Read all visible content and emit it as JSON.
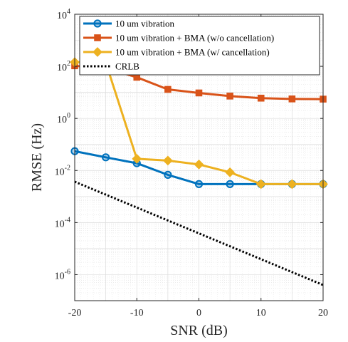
{
  "chart_data": {
    "type": "line",
    "title": "",
    "xlabel": "SNR (dB)",
    "ylabel": "RMSE (Hz)",
    "xlim": [
      -20,
      20
    ],
    "ylim": [
      1e-07,
      10000
    ],
    "yscale": "log",
    "xticks": [
      -20,
      -10,
      0,
      10,
      20
    ],
    "xtick_labels": [
      "-20",
      "-10",
      "0",
      "10",
      "20"
    ],
    "ytick_labels": [
      {
        "value": 1e-06,
        "base": "10",
        "exp": "-6"
      },
      {
        "value": 0.0001,
        "base": "10",
        "exp": "-4"
      },
      {
        "value": 0.01,
        "base": "10",
        "exp": "-2"
      },
      {
        "value": 1,
        "base": "10",
        "exp": "0"
      },
      {
        "value": 100,
        "base": "10",
        "exp": "2"
      },
      {
        "value": 10000,
        "base": "10",
        "exp": "4"
      }
    ],
    "grid": true,
    "minor_grid": true,
    "legend_position": "top",
    "series": [
      {
        "name": "10 um vibration",
        "color": "#0072BD",
        "marker": "circle",
        "line_style": "solid",
        "x": [
          -20,
          -15,
          -10,
          -5,
          0,
          5,
          10,
          15,
          20
        ],
        "y": [
          0.055,
          0.032,
          0.019,
          0.0068,
          0.003,
          0.003,
          0.003,
          0.003,
          0.003
        ]
      },
      {
        "name": "10 um vibration + BMA (w/o cancellation)",
        "color": "#D95319",
        "marker": "square",
        "line_style": "solid",
        "x": [
          -20,
          -15,
          -10,
          -5,
          0,
          5,
          10,
          15,
          20
        ],
        "y": [
          105,
          85,
          38,
          13,
          9.5,
          7.2,
          6.0,
          5.6,
          5.5
        ]
      },
      {
        "name": "10 um vibration + BMA (w/ cancellation)",
        "color": "#EDB120",
        "marker": "diamond",
        "line_style": "solid",
        "x": [
          -20,
          -15,
          -10,
          -5,
          0,
          5,
          10,
          15,
          20
        ],
        "y": [
          145,
          140,
          0.028,
          0.024,
          0.017,
          0.0085,
          0.003,
          0.003,
          0.003
        ]
      },
      {
        "name": "CRLB",
        "color": "#000000",
        "marker": "none",
        "line_style": "dotted",
        "x": [
          -20,
          20
        ],
        "y": [
          0.0037,
          4e-07
        ]
      }
    ]
  }
}
